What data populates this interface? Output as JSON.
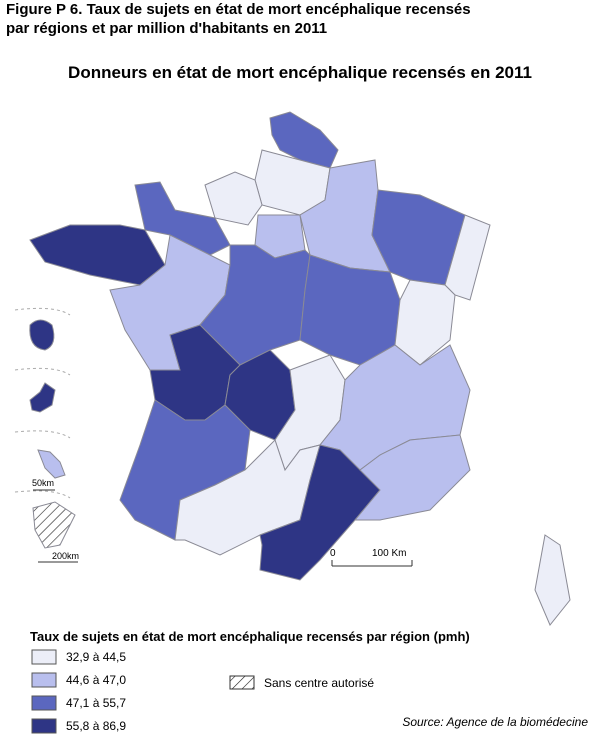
{
  "header": {
    "figure_title_lines": [
      "Figure P 6. Taux de sujets en état de mort encéphalique recensés",
      "par régions et par million d'habitants en 2011"
    ]
  },
  "map": {
    "title": "Donneurs en état de mort encéphalique recensés en 2011",
    "scale": {
      "zero": "0",
      "distance": "100 Km"
    },
    "insets": {
      "martinique_scale": "50km",
      "guyane_scale": "200km"
    }
  },
  "legend": {
    "title": "Taux de sujets en état de mort encéphalique recensés par région (pmh)",
    "items": [
      {
        "label": "32,9 à 44,5",
        "color": "#eceef8"
      },
      {
        "label": "44,6 à 47,0",
        "color": "#b9bfee"
      },
      {
        "label": "47,1 à 55,7",
        "color": "#5b67bf"
      },
      {
        "label": "55,8 à 86,9",
        "color": "#2e3585"
      }
    ],
    "hatched_label": "Sans centre autorisé"
  },
  "source": "Source: Agence de la biomédecine"
}
